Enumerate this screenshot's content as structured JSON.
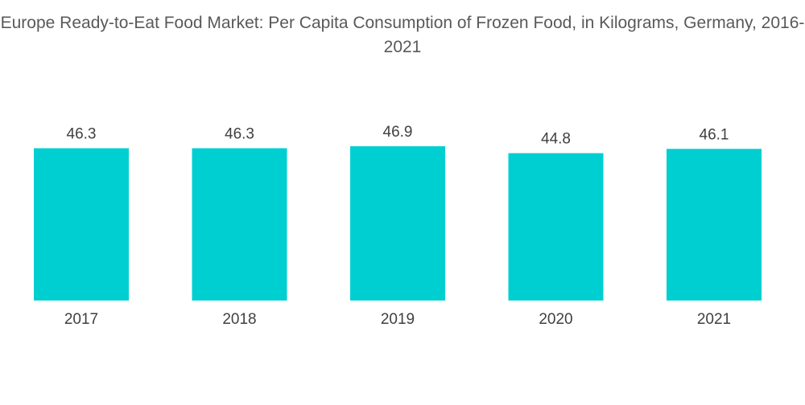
{
  "chart_data": {
    "type": "bar",
    "title": "Europe Ready-to-Eat Food Market: Per Capita Consumption of Frozen Food, in Kilograms, Germany, 2016-2021",
    "categories": [
      "2017",
      "2018",
      "2019",
      "2020",
      "2021"
    ],
    "values": [
      46.3,
      46.3,
      46.9,
      44.8,
      46.1
    ],
    "value_labels": [
      "46.3",
      "46.3",
      "46.9",
      "44.8",
      "46.1"
    ],
    "xlabel": "",
    "ylabel": "",
    "ylim": [
      0,
      46.9
    ],
    "grid": false,
    "legend": "none",
    "colors": {
      "bar": "#00cfd1"
    }
  }
}
